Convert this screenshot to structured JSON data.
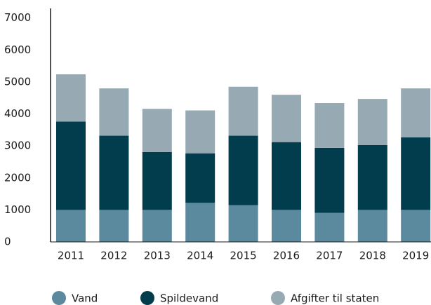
{
  "chart_data": {
    "type": "stacked-bar",
    "categories": [
      "2011",
      "2012",
      "2013",
      "2014",
      "2015",
      "2016",
      "2017",
      "2018",
      "2019"
    ],
    "series": [
      {
        "name": "Vand",
        "color": "#5b8a9e",
        "values": [
          1000,
          1000,
          1000,
          1220,
          1150,
          1000,
          910,
          1000,
          1000
        ]
      },
      {
        "name": "Spildevand",
        "color": "#023d4e",
        "values": [
          2760,
          2320,
          1810,
          1550,
          2170,
          2120,
          2030,
          2030,
          2270
        ]
      },
      {
        "name": "Afgifter til staten",
        "color": "#97aab4",
        "values": [
          1480,
          1480,
          1350,
          1340,
          1530,
          1480,
          1400,
          1440,
          1530
        ]
      }
    ],
    "ylim": [
      0,
      7300
    ],
    "yticks": [
      0,
      1000,
      2000,
      3000,
      4000,
      5000,
      6000,
      7000
    ],
    "grid": false
  }
}
